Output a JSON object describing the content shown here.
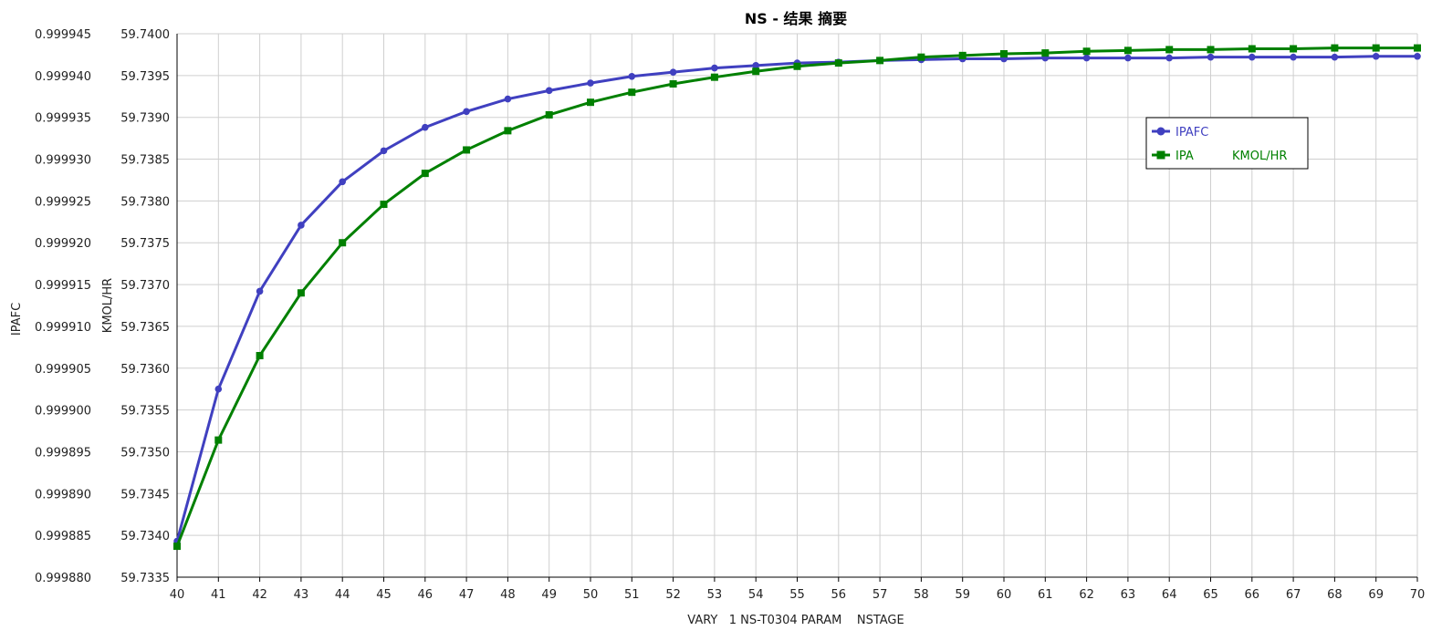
{
  "chart_data": {
    "type": "line",
    "title": "NS - 结果 摘要",
    "xlabel": "VARY   1 NS-T0304 PARAM    NSTAGE",
    "ylabel_left": "IPAFC",
    "ylabel_right": "KMOL/HR",
    "xlim": [
      40,
      70
    ],
    "ylim_left": [
      0.99988,
      0.999945
    ],
    "ylim_right": [
      59.7335,
      59.74
    ],
    "x_ticks": [
      "40",
      "41",
      "42",
      "43",
      "44",
      "45",
      "46",
      "47",
      "48",
      "49",
      "50",
      "51",
      "52",
      "53",
      "54",
      "55",
      "56",
      "57",
      "58",
      "59",
      "60",
      "61",
      "62",
      "63",
      "64",
      "65",
      "66",
      "67",
      "68",
      "69",
      "70"
    ],
    "y_ticks_left": [
      "0.999880",
      "0.999885",
      "0.999890",
      "0.999895",
      "0.999900",
      "0.999905",
      "0.999910",
      "0.999915",
      "0.999920",
      "0.999925",
      "0.999930",
      "0.999935",
      "0.999940",
      "0.999945"
    ],
    "y_ticks_right": [
      "59.7335",
      "59.7340",
      "59.7345",
      "59.7350",
      "59.7355",
      "59.7360",
      "59.7365",
      "59.7370",
      "59.7375",
      "59.7380",
      "59.7385",
      "59.7390",
      "59.7395",
      "59.7400"
    ],
    "grid": true,
    "legend_position": "top-right",
    "x": [
      40,
      41,
      42,
      43,
      44,
      45,
      46,
      47,
      48,
      49,
      50,
      51,
      52,
      53,
      54,
      55,
      56,
      57,
      58,
      59,
      60,
      61,
      62,
      63,
      64,
      65,
      66,
      67,
      68,
      69,
      70
    ],
    "series": [
      {
        "name": "IPAFC",
        "label": "IPAFC",
        "unit": "",
        "axis": "left",
        "color": "#4040c0",
        "marker": "circle",
        "values": [
          0.9998843,
          0.9999025,
          0.9999142,
          0.9999221,
          0.9999273,
          0.999931,
          0.9999338,
          0.9999357,
          0.9999372,
          0.9999382,
          0.9999391,
          0.9999399,
          0.9999404,
          0.9999409,
          0.9999412,
          0.9999415,
          0.9999416,
          0.9999418,
          0.9999419,
          0.999942,
          0.999942,
          0.9999421,
          0.9999421,
          0.9999421,
          0.9999421,
          0.9999422,
          0.9999422,
          0.9999422,
          0.9999422,
          0.9999423,
          0.9999423
        ]
      },
      {
        "name": "IPA KMOL/HR",
        "label": "IPA",
        "unit": "KMOL/HR",
        "axis": "right",
        "color": "#008000",
        "marker": "square",
        "values": [
          59.73387,
          59.73514,
          59.73615,
          59.7369,
          59.7375,
          59.73796,
          59.73833,
          59.73861,
          59.73884,
          59.73903,
          59.73918,
          59.7393,
          59.7394,
          59.73948,
          59.73955,
          59.73961,
          59.73965,
          59.73968,
          59.73972,
          59.73974,
          59.73976,
          59.73977,
          59.73979,
          59.7398,
          59.73981,
          59.73981,
          59.73982,
          59.73982,
          59.73983,
          59.73983,
          59.73983
        ]
      }
    ]
  }
}
